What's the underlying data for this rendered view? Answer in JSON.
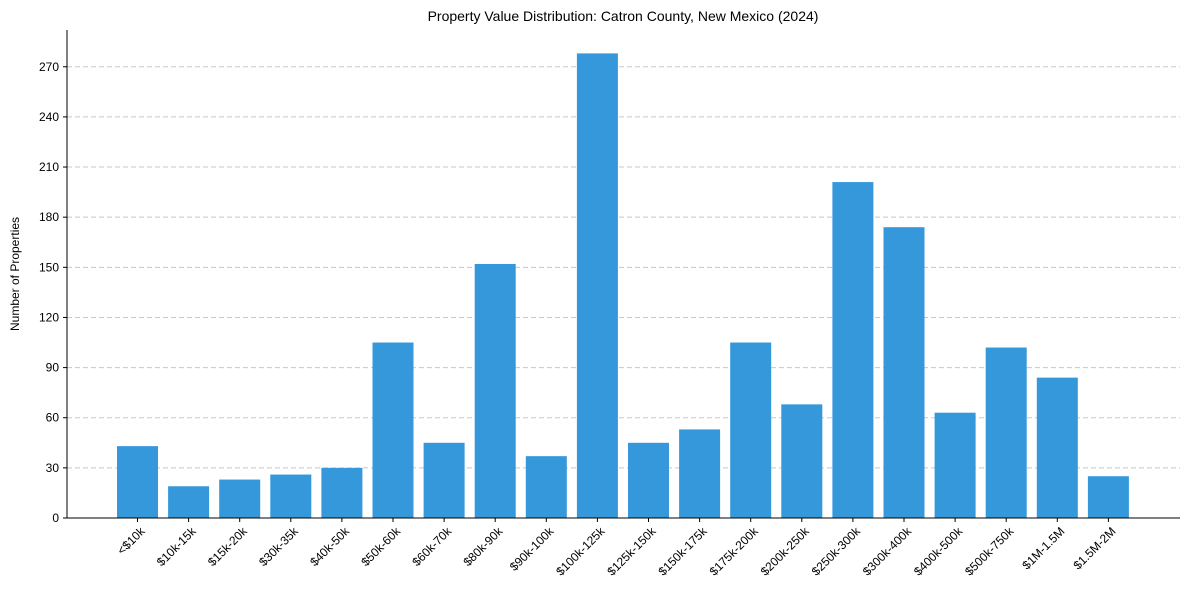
{
  "chart_data": {
    "type": "bar",
    "title": "Property Value Distribution: Catron County, New Mexico (2024)",
    "xlabel": "",
    "ylabel": "Number of Properties",
    "categories": [
      "<$10k",
      "$10k-15k",
      "$15k-20k",
      "$30k-35k",
      "$40k-50k",
      "$50k-60k",
      "$60k-70k",
      "$80k-90k",
      "$90k-100k",
      "$100k-125k",
      "$125k-150k",
      "$150k-175k",
      "$175k-200k",
      "$200k-250k",
      "$250k-300k",
      "$300k-400k",
      "$400k-500k",
      "$500k-750k",
      "$1M-1.5M",
      "$1.5M-2M"
    ],
    "values": [
      43,
      19,
      23,
      26,
      30,
      105,
      45,
      152,
      37,
      278,
      45,
      53,
      105,
      68,
      201,
      174,
      63,
      102,
      84,
      25
    ],
    "ylim": [
      0,
      292
    ],
    "yticks": [
      0,
      30,
      60,
      90,
      120,
      150,
      180,
      210,
      240,
      270
    ],
    "grid": "y-dashed",
    "bar_color": "#3498db"
  }
}
